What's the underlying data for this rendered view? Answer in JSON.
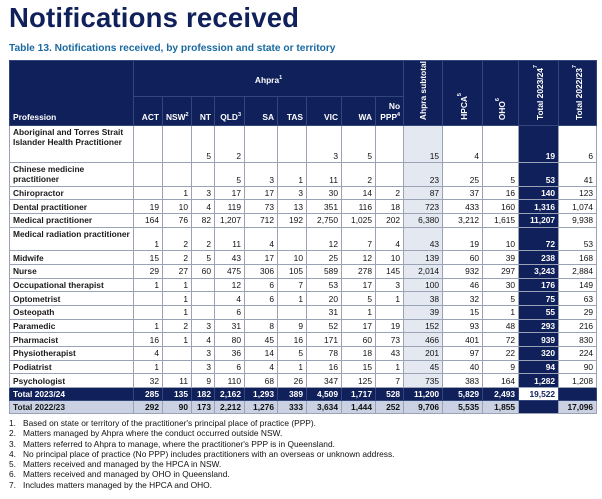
{
  "title": "Notifications received",
  "caption": "Table 13. Notifications received, by profession and state or territory",
  "header": {
    "group": "Ahpra",
    "group_sup": "1",
    "profession": "Profession",
    "cols": [
      {
        "label": "ACT",
        "sup": ""
      },
      {
        "label": "NSW",
        "sup": "2"
      },
      {
        "label": "NT",
        "sup": ""
      },
      {
        "label": "QLD",
        "sup": "3"
      },
      {
        "label": "SA",
        "sup": ""
      },
      {
        "label": "TAS",
        "sup": ""
      },
      {
        "label": "VIC",
        "sup": ""
      },
      {
        "label": "WA",
        "sup": ""
      },
      {
        "label": "No PPP",
        "sup": "4"
      }
    ],
    "subtotal": "Ahpra subtotal",
    "hpca": "HPCA",
    "hpca_sup": "5",
    "oho": "OHO",
    "oho_sup": "6",
    "total_cur": "Total 2023/24",
    "total_cur_sup": "7",
    "total_prev": "Total 2022/23",
    "total_prev_sup": "7"
  },
  "rows": [
    {
      "profession": "Aboriginal and Torres Strait Islander Health Practitioner",
      "values": [
        "",
        "",
        "5",
        "2",
        "",
        "",
        "3",
        "5",
        "",
        "15",
        "4",
        "",
        "19",
        "6"
      ]
    },
    {
      "profession": "Chinese medicine practitioner",
      "values": [
        "",
        "",
        "",
        "5",
        "3",
        "1",
        "11",
        "2",
        "",
        "23",
        "25",
        "5",
        "53",
        "41"
      ]
    },
    {
      "profession": "Chiropractor",
      "values": [
        "",
        "1",
        "3",
        "17",
        "17",
        "3",
        "30",
        "14",
        "2",
        "87",
        "37",
        "16",
        "140",
        "123"
      ]
    },
    {
      "profession": "Dental practitioner",
      "values": [
        "19",
        "10",
        "4",
        "119",
        "73",
        "13",
        "351",
        "116",
        "18",
        "723",
        "433",
        "160",
        "1,316",
        "1,074"
      ]
    },
    {
      "profession": "Medical practitioner",
      "values": [
        "164",
        "76",
        "82",
        "1,207",
        "712",
        "192",
        "2,750",
        "1,025",
        "202",
        "6,380",
        "3,212",
        "1,615",
        "11,207",
        "9,938"
      ]
    },
    {
      "profession": "Medical radiation practitioner",
      "values": [
        "1",
        "2",
        "2",
        "11",
        "4",
        "",
        "12",
        "7",
        "4",
        "43",
        "19",
        "10",
        "72",
        "53"
      ]
    },
    {
      "profession": "Midwife",
      "values": [
        "15",
        "2",
        "5",
        "43",
        "17",
        "10",
        "25",
        "12",
        "10",
        "139",
        "60",
        "39",
        "238",
        "168"
      ]
    },
    {
      "profession": "Nurse",
      "values": [
        "29",
        "27",
        "60",
        "475",
        "306",
        "105",
        "589",
        "278",
        "145",
        "2,014",
        "932",
        "297",
        "3,243",
        "2,884"
      ]
    },
    {
      "profession": "Occupational therapist",
      "values": [
        "1",
        "1",
        "",
        "12",
        "6",
        "7",
        "53",
        "17",
        "3",
        "100",
        "46",
        "30",
        "176",
        "149"
      ]
    },
    {
      "profession": "Optometrist",
      "values": [
        "",
        "1",
        "",
        "4",
        "6",
        "1",
        "20",
        "5",
        "1",
        "38",
        "32",
        "5",
        "75",
        "63"
      ]
    },
    {
      "profession": "Osteopath",
      "values": [
        "",
        "1",
        "",
        "6",
        "",
        "",
        "31",
        "1",
        "",
        "39",
        "15",
        "1",
        "55",
        "29"
      ]
    },
    {
      "profession": "Paramedic",
      "values": [
        "1",
        "2",
        "3",
        "31",
        "8",
        "9",
        "52",
        "17",
        "19",
        "152",
        "93",
        "48",
        "293",
        "216"
      ]
    },
    {
      "profession": "Pharmacist",
      "values": [
        "16",
        "1",
        "4",
        "80",
        "45",
        "16",
        "171",
        "60",
        "73",
        "466",
        "401",
        "72",
        "939",
        "830"
      ]
    },
    {
      "profession": "Physiotherapist",
      "values": [
        "4",
        "",
        "3",
        "36",
        "14",
        "5",
        "78",
        "18",
        "43",
        "201",
        "97",
        "22",
        "320",
        "224"
      ]
    },
    {
      "profession": "Podiatrist",
      "values": [
        "1",
        "",
        "3",
        "6",
        "4",
        "1",
        "16",
        "15",
        "1",
        "45",
        "40",
        "9",
        "94",
        "90"
      ]
    },
    {
      "profession": "Psychologist",
      "values": [
        "32",
        "11",
        "9",
        "110",
        "68",
        "26",
        "347",
        "125",
        "7",
        "735",
        "383",
        "164",
        "1,282",
        "1,208"
      ]
    }
  ],
  "total_row": {
    "profession": "Total 2023/24",
    "values": [
      "285",
      "135",
      "182",
      "2,162",
      "1,293",
      "389",
      "4,509",
      "1,717",
      "528",
      "11,200",
      "5,829",
      "2,493",
      "19,522",
      ""
    ]
  },
  "prev_row": {
    "profession": "Total 2022/23",
    "values": [
      "292",
      "90",
      "173",
      "2,212",
      "1,276",
      "333",
      "3,634",
      "1,444",
      "252",
      "9,706",
      "5,535",
      "1,855",
      "",
      "17,096"
    ]
  },
  "footnotes": [
    {
      "num": "1.",
      "text": "Based on state or territory of the practitioner's principal place of practice (PPP)."
    },
    {
      "num": "2.",
      "text": "Matters managed by Ahpra where the conduct occurred outside NSW."
    },
    {
      "num": "3.",
      "text": "Matters referred to Ahpra to manage, where the practitioner's PPP is in Queensland."
    },
    {
      "num": "4.",
      "text": "No principal place of practice (No PPP) includes practitioners with an overseas or unknown address."
    },
    {
      "num": "5.",
      "text": "Matters received and managed by the HPCA in NSW."
    },
    {
      "num": "6.",
      "text": "Matters received and managed by OHO in Queensland."
    },
    {
      "num": "7.",
      "text": "Includes matters managed by the HPCA and OHO."
    }
  ],
  "colors": {
    "navy": "#10205a",
    "caption": "#1a6aa0",
    "subtotal_bg": "#e3e8f1",
    "prev_bg": "#c9d1e2"
  }
}
